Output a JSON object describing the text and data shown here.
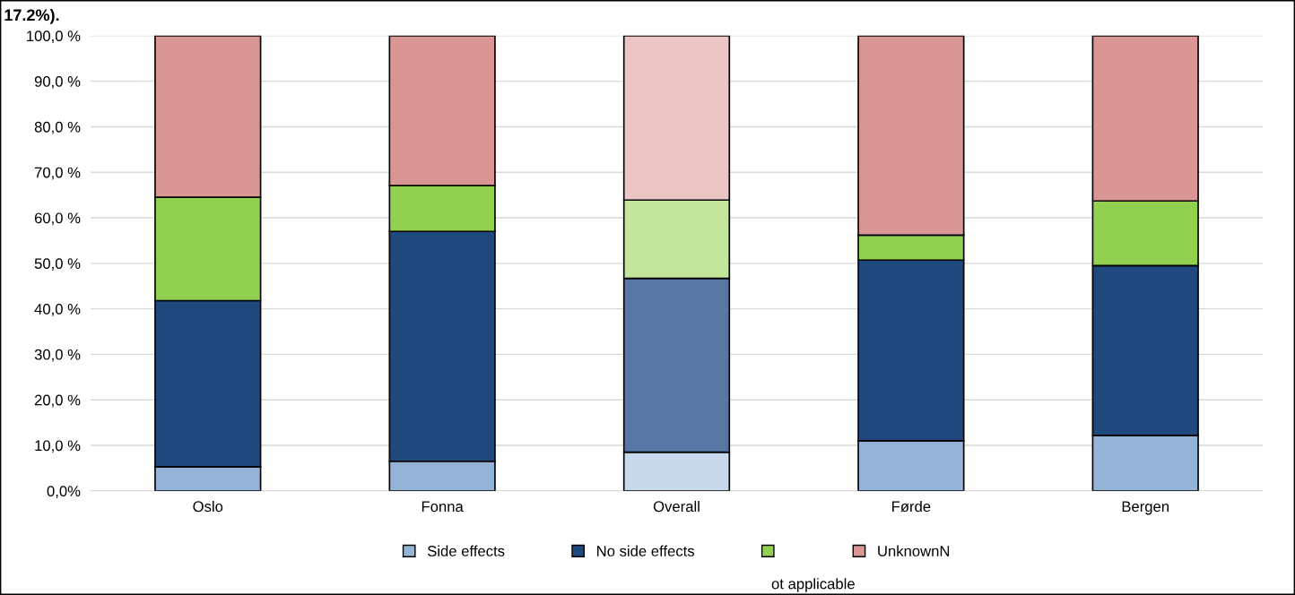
{
  "chart_data": {
    "type": "bar",
    "stacked": true,
    "categories": [
      "Oslo",
      "Fonna",
      "Overall",
      "Førde",
      "Bergen"
    ],
    "series": [
      {
        "name": "Side effects",
        "color": "#95b3d7",
        "colors": [
          "#95b3d7",
          "#95b3d7",
          "#c9d9ec",
          "#95b3d7",
          "#95b3d7"
        ],
        "values": [
          5.3,
          6.5,
          8.5,
          11.0,
          12.2
        ]
      },
      {
        "name": "No side effects",
        "color": "#1f497d",
        "colors": [
          "#1f497d",
          "#1f497d",
          "#5677a3",
          "#1f497d",
          "#1f497d"
        ],
        "values": [
          36.5,
          50.5,
          38.2,
          39.7,
          37.3
        ]
      },
      {
        "color": "#92d050",
        "colors": [
          "#92d050",
          "#92d050",
          "#c3e69c",
          "#92d050",
          "#92d050"
        ],
        "values": [
          22.7,
          10.1,
          17.2,
          5.5,
          14.2
        ]
      },
      {
        "name": "UnknownN",
        "color": "#d99694",
        "colors": [
          "#d99694",
          "#d99694",
          "#ecc6c5",
          "#d99694",
          "#d99694"
        ],
        "values": [
          35.5,
          32.9,
          36.1,
          43.8,
          36.3
        ]
      }
    ],
    "ylim": [
      0,
      100
    ],
    "yticks": [
      {
        "value": 0,
        "label": "0,0%"
      },
      {
        "value": 10,
        "label": "10,0 %"
      },
      {
        "value": 20,
        "label": "20,0 %"
      },
      {
        "value": 30,
        "label": "30,0 %"
      },
      {
        "value": 40,
        "label": "40,0 %"
      },
      {
        "value": 50,
        "label": "50,0 %"
      },
      {
        "value": 60,
        "label": "60,0 %"
      },
      {
        "value": 70,
        "label": "70,0 %"
      },
      {
        "value": 80,
        "label": "80,0 %"
      },
      {
        "value": 90,
        "label": "90,0 %"
      },
      {
        "value": 100,
        "label": "100,0 %"
      }
    ],
    "grid": "y",
    "legend": "bottom",
    "annotations": [
      "17.2%).",
      "ot applicable"
    ]
  }
}
